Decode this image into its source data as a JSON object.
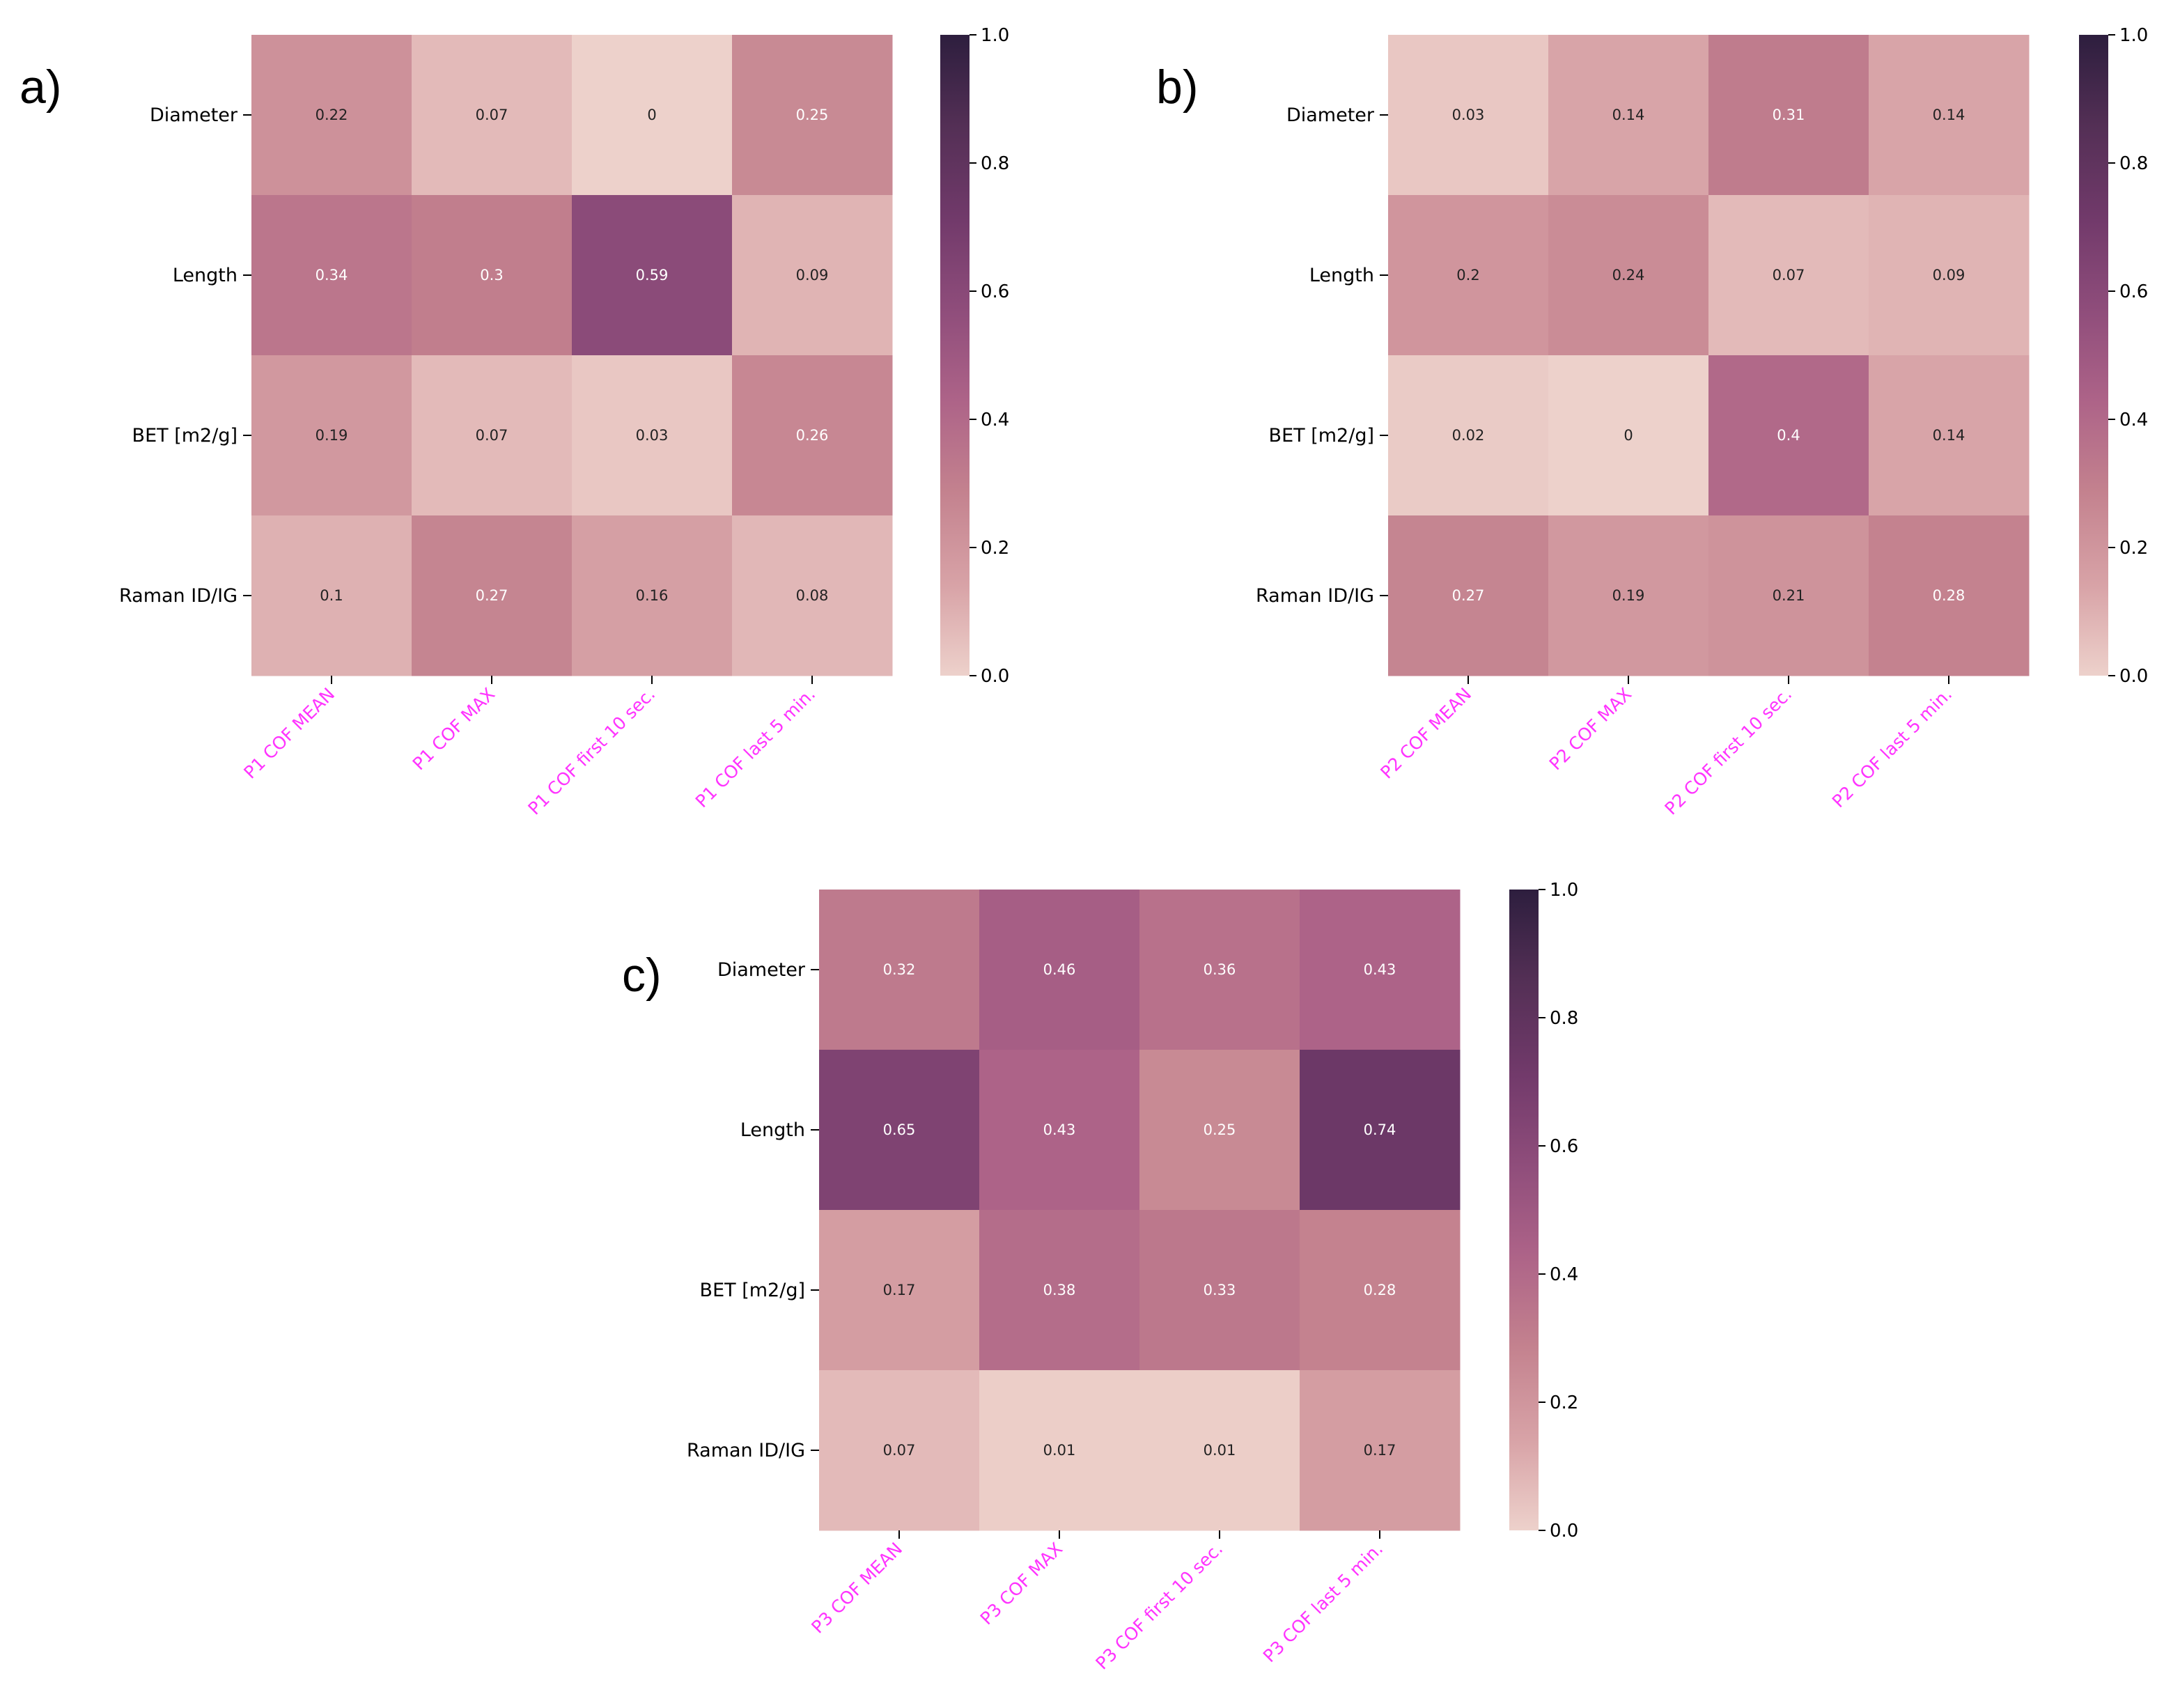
{
  "figure": {
    "panels": [
      "a)",
      "b)",
      "c)"
    ]
  },
  "chart_data": [
    {
      "type": "heatmap",
      "panel": "a)",
      "rows": [
        "Diameter",
        "Length",
        "BET [m2/g]",
        "Raman ID/IG"
      ],
      "columns": [
        "P1 COF MEAN",
        "P1 COF MAX",
        "P1 COF first 10 sec.",
        "P1 COF last 5 min."
      ],
      "values": [
        [
          0.22,
          0.07,
          0,
          0.25
        ],
        [
          0.34,
          0.3,
          0.59,
          0.09
        ],
        [
          0.19,
          0.07,
          0.03,
          0.26
        ],
        [
          0.1,
          0.27,
          0.16,
          0.08
        ]
      ],
      "labels": [
        [
          "0.22",
          "0.07",
          "0",
          "0.25"
        ],
        [
          "0.34",
          "0.3",
          "0.59",
          "0.09"
        ],
        [
          "0.19",
          "0.07",
          "0.03",
          "0.26"
        ],
        [
          "0.1",
          "0.27",
          "0.16",
          "0.08"
        ]
      ],
      "colorbar": {
        "range": [
          0.0,
          1.0
        ],
        "ticks": [
          "0.0",
          "0.2",
          "0.4",
          "0.6",
          "0.8",
          "1.0"
        ]
      }
    },
    {
      "type": "heatmap",
      "panel": "b)",
      "rows": [
        "Diameter",
        "Length",
        "BET [m2/g]",
        "Raman ID/IG"
      ],
      "columns": [
        "P2 COF MEAN",
        "P2 COF MAX",
        "P2 COF first 10 sec.",
        "P2 COF last 5 min."
      ],
      "values": [
        [
          0.03,
          0.14,
          0.31,
          0.14
        ],
        [
          0.2,
          0.24,
          0.07,
          0.09
        ],
        [
          0.02,
          0,
          0.4,
          0.14
        ],
        [
          0.27,
          0.19,
          0.21,
          0.28
        ]
      ],
      "labels": [
        [
          "0.03",
          "0.14",
          "0.31",
          "0.14"
        ],
        [
          "0.2",
          "0.24",
          "0.07",
          "0.09"
        ],
        [
          "0.02",
          "0",
          "0.4",
          "0.14"
        ],
        [
          "0.27",
          "0.19",
          "0.21",
          "0.28"
        ]
      ],
      "colorbar": {
        "range": [
          0.0,
          1.0
        ],
        "ticks": [
          "0.0",
          "0.2",
          "0.4",
          "0.6",
          "0.8",
          "1.0"
        ]
      }
    },
    {
      "type": "heatmap",
      "panel": "c)",
      "rows": [
        "Diameter",
        "Length",
        "BET [m2/g]",
        "Raman ID/IG"
      ],
      "columns": [
        "P3 COF MEAN",
        "P3 COF MAX",
        "P3 COF first 10 sec.",
        "P3 COF last 5 min."
      ],
      "values": [
        [
          0.32,
          0.46,
          0.36,
          0.43
        ],
        [
          0.65,
          0.43,
          0.25,
          0.74
        ],
        [
          0.17,
          0.38,
          0.33,
          0.28
        ],
        [
          0.07,
          0.01,
          0.01,
          0.17
        ]
      ],
      "labels": [
        [
          "0.32",
          "0.46",
          "0.36",
          "0.43"
        ],
        [
          "0.65",
          "0.43",
          "0.25",
          "0.74"
        ],
        [
          "0.17",
          "0.38",
          "0.33",
          "0.28"
        ],
        [
          "0.07",
          "0.01",
          "0.01",
          "0.17"
        ]
      ],
      "colorbar": {
        "range": [
          0.0,
          1.0
        ],
        "ticks": [
          "0.0",
          "0.2",
          "0.4",
          "0.6",
          "0.8",
          "1.0"
        ]
      }
    }
  ],
  "colors": {
    "colormap": [
      "#edd1cb",
      "#d8a3a7",
      "#c3818e",
      "#ad6388",
      "#8f4d7b",
      "#723a6b",
      "#532f55",
      "#2d1e3e"
    ],
    "tick_label_x": "#ff33ff",
    "cell_text_light": "#ffffff",
    "cell_text_dark": "#222222"
  }
}
